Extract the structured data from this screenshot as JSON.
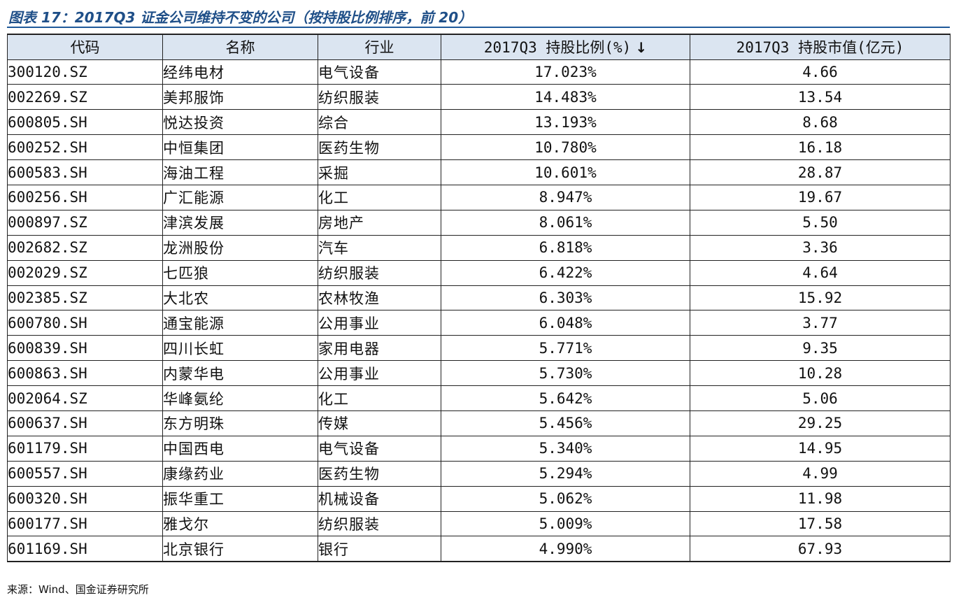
{
  "title": "图表 17：2017Q3 证金公司维持不变的公司（按持股比例排序，前 20）",
  "columns": {
    "code": "代码",
    "name": "名称",
    "industry": "行业",
    "ratio": "2017Q3 持股比例(%)",
    "value": "2017Q3 持股市值(亿元)"
  },
  "sort_arrow": "↓",
  "rows": [
    {
      "code": "300120.SZ",
      "name": "经纬电材",
      "industry": "电气设备",
      "ratio": "17.023%",
      "value": "4.66"
    },
    {
      "code": "002269.SZ",
      "name": "美邦服饰",
      "industry": "纺织服装",
      "ratio": "14.483%",
      "value": "13.54"
    },
    {
      "code": "600805.SH",
      "name": "悦达投资",
      "industry": "综合",
      "ratio": "13.193%",
      "value": "8.68"
    },
    {
      "code": "600252.SH",
      "name": "中恒集团",
      "industry": "医药生物",
      "ratio": "10.780%",
      "value": "16.18"
    },
    {
      "code": "600583.SH",
      "name": "海油工程",
      "industry": "采掘",
      "ratio": "10.601%",
      "value": "28.87"
    },
    {
      "code": "600256.SH",
      "name": "广汇能源",
      "industry": "化工",
      "ratio": "8.947%",
      "value": "19.67"
    },
    {
      "code": "000897.SZ",
      "name": "津滨发展",
      "industry": "房地产",
      "ratio": "8.061%",
      "value": "5.50"
    },
    {
      "code": "002682.SZ",
      "name": "龙洲股份",
      "industry": "汽车",
      "ratio": "6.818%",
      "value": "3.36"
    },
    {
      "code": "002029.SZ",
      "name": "七匹狼",
      "industry": "纺织服装",
      "ratio": "6.422%",
      "value": "4.64"
    },
    {
      "code": "002385.SZ",
      "name": "大北农",
      "industry": "农林牧渔",
      "ratio": "6.303%",
      "value": "15.92"
    },
    {
      "code": "600780.SH",
      "name": "通宝能源",
      "industry": "公用事业",
      "ratio": "6.048%",
      "value": "3.77"
    },
    {
      "code": "600839.SH",
      "name": "四川长虹",
      "industry": "家用电器",
      "ratio": "5.771%",
      "value": "9.35"
    },
    {
      "code": "600863.SH",
      "name": "内蒙华电",
      "industry": "公用事业",
      "ratio": "5.730%",
      "value": "10.28"
    },
    {
      "code": "002064.SZ",
      "name": "华峰氨纶",
      "industry": "化工",
      "ratio": "5.642%",
      "value": "5.06"
    },
    {
      "code": "600637.SH",
      "name": "东方明珠",
      "industry": "传媒",
      "ratio": "5.456%",
      "value": "29.25"
    },
    {
      "code": "601179.SH",
      "name": "中国西电",
      "industry": "电气设备",
      "ratio": "5.340%",
      "value": "14.95"
    },
    {
      "code": "600557.SH",
      "name": "康缘药业",
      "industry": "医药生物",
      "ratio": "5.294%",
      "value": "4.99"
    },
    {
      "code": "600320.SH",
      "name": "振华重工",
      "industry": "机械设备",
      "ratio": "5.062%",
      "value": "11.98"
    },
    {
      "code": "600177.SH",
      "name": "雅戈尔",
      "industry": "纺织服装",
      "ratio": "5.009%",
      "value": "17.58"
    },
    {
      "code": "601169.SH",
      "name": "北京银行",
      "industry": "银行",
      "ratio": "4.990%",
      "value": "67.93"
    }
  ],
  "source": "来源：Wind、国金证券研究所",
  "colors": {
    "title": "#1f4f88",
    "rule": "#1f5a9a",
    "header_bg": "#dbe5f1"
  }
}
